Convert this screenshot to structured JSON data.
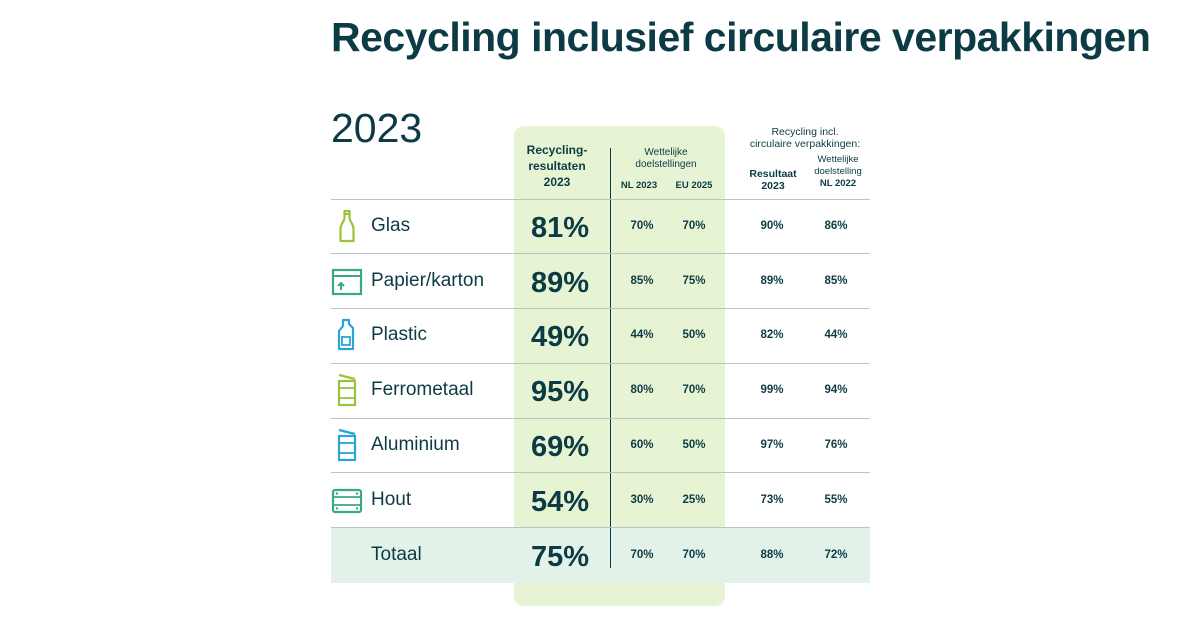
{
  "chart_data": {
    "type": "table",
    "title": "Recycling inclusief circulaire verpakkingen",
    "subtitle": "2023",
    "columns": {
      "recycling_header": "Recycling-resultaten 2023",
      "recycling_line1": "Recycling-",
      "recycling_line2": "resultaten",
      "recycling_line3": "2023",
      "targets_group": "Wettelijke doelstellingen",
      "targets_line1": "Wettelijke",
      "targets_line2": "doelstellingen",
      "nl2023": "NL 2023",
      "eu2025": "EU 2025",
      "circular_group_line1": "Recycling incl.",
      "circular_group_line2": "circulaire verpakkingen:",
      "result_line1": "Resultaat",
      "result_line2": "2023",
      "target_nl_line1": "Wettelijke",
      "target_nl_line2": "doelstelling",
      "target_nl_line3": "NL 2022"
    },
    "rows": [
      {
        "material": "Glas",
        "icon": "bottle-icon",
        "recycling": "81%",
        "nl2023": "70%",
        "eu2025": "70%",
        "result2023": "90%",
        "target_nl2022": "86%"
      },
      {
        "material": "Papier/karton",
        "icon": "box-icon",
        "recycling": "89%",
        "nl2023": "85%",
        "eu2025": "75%",
        "result2023": "89%",
        "target_nl2022": "85%"
      },
      {
        "material": "Plastic",
        "icon": "plastic-bottle-icon",
        "recycling": "49%",
        "nl2023": "44%",
        "eu2025": "50%",
        "result2023": "82%",
        "target_nl2022": "44%"
      },
      {
        "material": "Ferrometaal",
        "icon": "can-icon",
        "recycling": "95%",
        "nl2023": "80%",
        "eu2025": "70%",
        "result2023": "99%",
        "target_nl2022": "94%"
      },
      {
        "material": "Aluminium",
        "icon": "can-icon",
        "recycling": "69%",
        "nl2023": "60%",
        "eu2025": "50%",
        "result2023": "97%",
        "target_nl2022": "76%"
      },
      {
        "material": "Hout",
        "icon": "pallet-icon",
        "recycling": "54%",
        "nl2023": "30%",
        "eu2025": "25%",
        "result2023": "73%",
        "target_nl2022": "55%"
      }
    ],
    "total": {
      "material": "Totaal",
      "recycling": "75%",
      "nl2023": "70%",
      "eu2025": "70%",
      "result2023": "88%",
      "target_nl2022": "72%"
    },
    "colors": {
      "text": "#0d3b45",
      "highlight": "#e6f4d3",
      "total_band": "#e3f2e9",
      "icon_lime": "#9bc23c",
      "icon_teal": "#3aaa7e",
      "icon_blue": "#2aa3d6"
    }
  }
}
